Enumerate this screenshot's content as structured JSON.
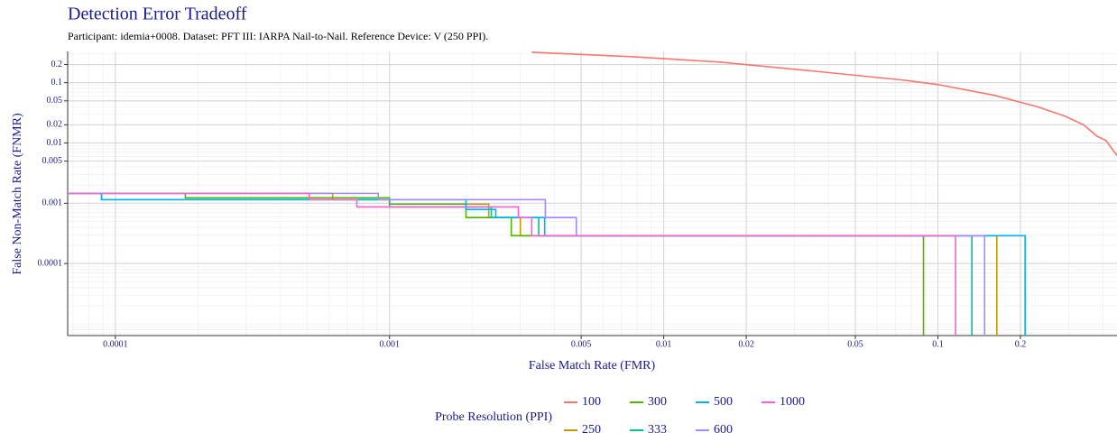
{
  "chart_data": {
    "type": "step-line",
    "title": "Detection Error Tradeoff",
    "subtitle": "Participant: idemia+0008. Dataset: PFT III: IARPA Nail-to-Nail. Reference Device: V (250 PPI).",
    "x_label": "False Match Rate (FMR)",
    "y_label": "False Non-Match Rate (FNMR)",
    "legend_title": "Probe Resolution (PPI)",
    "x_log": true,
    "y_log": true,
    "grid": true,
    "legend_position": "bottom",
    "xlim": [
      6.7e-05,
      0.45
    ],
    "ylim": [
      6.4e-06,
      0.33
    ],
    "xticks": [
      0.0001,
      0.001,
      0.005,
      0.01,
      0.02,
      0.05,
      0.1,
      0.2
    ],
    "yticks": [
      0.2,
      0.1,
      0.05,
      0.02,
      0.01,
      0.005,
      0.001,
      0.0001
    ],
    "series": [
      {
        "name": "100",
        "color": "#F8766D",
        "x": [
          0.0033,
          0.0076,
          0.016,
          0.035,
          0.074,
          0.1,
          0.16,
          0.23,
          0.29,
          0.34,
          0.38,
          0.41,
          0.45
        ],
        "values": [
          0.32,
          0.27,
          0.22,
          0.156,
          0.111,
          0.093,
          0.062,
          0.04,
          0.028,
          0.02,
          0.013,
          0.011,
          0.0062
        ]
      },
      {
        "name": "250",
        "color": "#C49A00",
        "x": [
          6.7e-05,
          0.00062,
          0.00062,
          0.001,
          0.001,
          0.0023,
          0.0023,
          0.003,
          0.003,
          0.164,
          0.164
        ],
        "values": [
          0.00146,
          0.00146,
          0.00115,
          0.00115,
          0.00097,
          0.00097,
          0.00058,
          0.00058,
          0.00029,
          0.00029,
          1e-06
        ]
      },
      {
        "name": "300",
        "color": "#53B400",
        "x": [
          6.7e-05,
          0.00018,
          0.00018,
          0.001,
          0.001,
          0.0019,
          0.0019,
          0.00278,
          0.00278,
          0.0886,
          0.0886
        ],
        "values": [
          0.00146,
          0.00146,
          0.00123,
          0.00123,
          0.00097,
          0.00097,
          0.00058,
          0.00058,
          0.00029,
          0.00029,
          1e-06
        ]
      },
      {
        "name": "333",
        "color": "#00C094",
        "x": [
          6.7e-05,
          8.9e-05,
          8.9e-05,
          0.001,
          0.001,
          0.00235,
          0.00235,
          0.0035,
          0.0035,
          0.133,
          0.133
        ],
        "values": [
          0.00146,
          0.00146,
          0.00115,
          0.00115,
          0.00087,
          0.00087,
          0.00058,
          0.00058,
          0.00029,
          0.00029,
          1e-06
        ]
      },
      {
        "name": "500",
        "color": "#00B6EB",
        "x": [
          6.7e-05,
          8.9e-05,
          8.9e-05,
          0.0019,
          0.0019,
          0.00244,
          0.00244,
          0.00368,
          0.00368,
          0.208,
          0.208
        ],
        "values": [
          0.00146,
          0.00146,
          0.00115,
          0.00115,
          0.00079,
          0.00079,
          0.00058,
          0.00058,
          0.00029,
          0.00029,
          1e-06
        ]
      },
      {
        "name": "600",
        "color": "#A58AFF",
        "x": [
          6.7e-05,
          0.00091,
          0.00091,
          0.0037,
          0.0037,
          0.0048,
          0.0048,
          0.148,
          0.148
        ],
        "values": [
          0.00146,
          0.00146,
          0.00115,
          0.00115,
          0.00058,
          0.00058,
          0.00029,
          0.00029,
          1e-06
        ]
      },
      {
        "name": "1000",
        "color": "#FB61D7",
        "x": [
          6.7e-05,
          0.00051,
          0.00051,
          0.00076,
          0.00076,
          0.00295,
          0.00295,
          0.0033,
          0.0033,
          0.116,
          0.116
        ],
        "values": [
          0.00146,
          0.00146,
          0.00115,
          0.00115,
          0.00087,
          0.00087,
          0.00058,
          0.00058,
          0.00029,
          0.00029,
          1e-06
        ]
      }
    ]
  }
}
